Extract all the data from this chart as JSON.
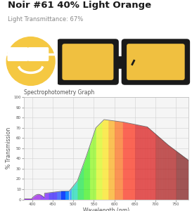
{
  "title": "Noir #61 40% Light Orange",
  "subtitle": "Light Transmittance: 67%",
  "graph_title": "Spectrophotometry Graph",
  "xlabel": "Wavelength (nm)",
  "ylabel": "% Transmission",
  "bg_color": "#ffffff",
  "title_color": "#1a1a1a",
  "subtitle_color": "#888888",
  "graph_label_color": "#555555",
  "icon_circle_color": "#f5c842",
  "lens_color": "#f0c040",
  "frame_color": "#1a1a1a",
  "x_ticks": [
    400,
    450,
    500,
    550,
    600,
    650,
    700,
    750
  ],
  "y_ticks": [
    0,
    10,
    20,
    30,
    40,
    50,
    60,
    70,
    80,
    90,
    100
  ],
  "wavelength_min": 380,
  "wavelength_max": 780
}
